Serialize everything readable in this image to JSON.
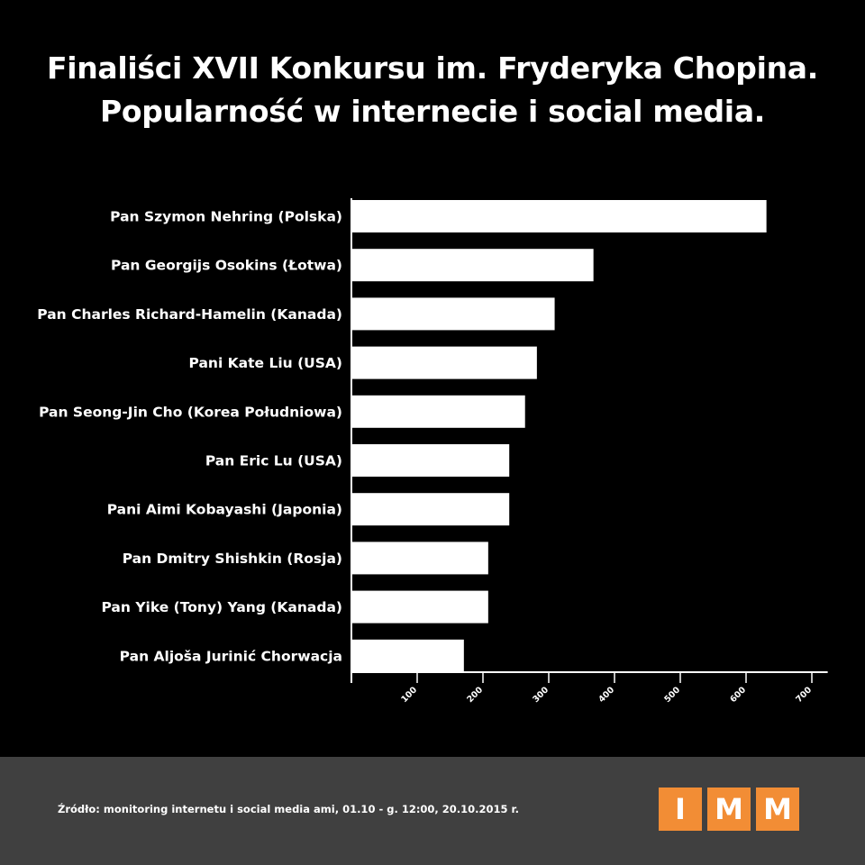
{
  "title_line1": "Finaliści XVII Konkursu im. Fryderyka Chopina.",
  "title_line2": "Popularność w internecie i social media.",
  "source": "Źródło: monitoring internetu i social media ami, 01.10 - g. 12:00, 20.10.2015 r.",
  "logo_letters": [
    "I",
    "M",
    "M"
  ],
  "colors": {
    "background": "#000000",
    "bar": "#ffffff",
    "footer": "#404040",
    "logo": "#f28d35"
  },
  "chart_data": {
    "type": "bar",
    "orientation": "horizontal",
    "categories": [
      "Pan Szymon Nehring (Polska)",
      "Pan Georgijs Osokins (Łotwa)",
      "Pan Charles Richard-Hamelin (Kanada)",
      "Pani Kate Liu (USA)",
      "Pan Seong-Jin Cho (Korea Południowa)",
      "Pan Eric Lu (USA)",
      "Pani Aimi Kobayashi (Japonia)",
      "Pan Dmitry Shishkin (Rosja)",
      "Pan Yike (Tony) Yang (Kanada)",
      "Pan Aljoša Jurinić Chorwacja"
    ],
    "values": [
      631,
      368,
      309,
      282,
      264,
      240,
      240,
      208,
      208,
      171
    ],
    "xlim": [
      0,
      720
    ],
    "xticks": [
      100,
      200,
      300,
      400,
      500,
      600,
      700
    ],
    "grid": false
  }
}
